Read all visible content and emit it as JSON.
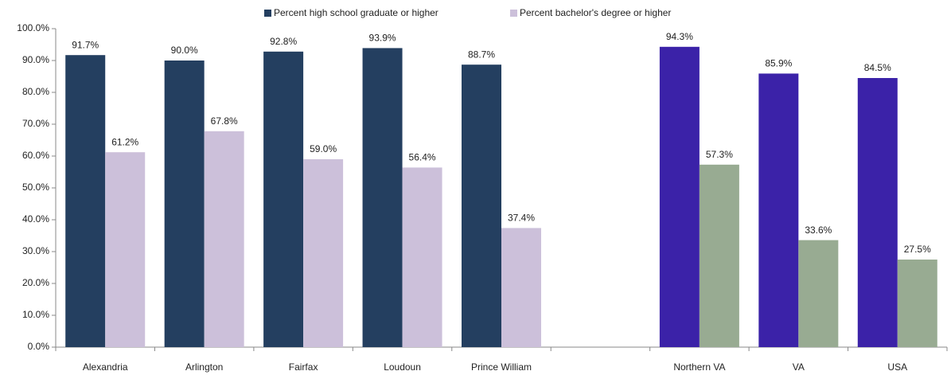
{
  "chart_data": {
    "type": "bar",
    "categories": [
      "Alexandria",
      "Arlington",
      "Fairfax",
      "Loudoun",
      "Prince William",
      null,
      "Northern VA",
      "VA",
      "USA"
    ],
    "series": [
      {
        "name": "Percent high school graduate or higher",
        "color": "#243f60",
        "point_colors": [
          "#243f60",
          "#243f60",
          "#243f60",
          "#243f60",
          "#243f60",
          null,
          "#3b22a8",
          "#3b22a8",
          "#3b22a8"
        ],
        "values": [
          91.7,
          90.0,
          92.8,
          93.9,
          88.7,
          null,
          94.3,
          85.9,
          84.5
        ],
        "value_labels": [
          "91.7%",
          "90.0%",
          "92.8%",
          "93.9%",
          "88.7%",
          null,
          "94.3%",
          "85.9%",
          "84.5%"
        ]
      },
      {
        "name": "Percent bachelor's degree or higher",
        "color": "#ccc0da",
        "point_colors": [
          "#ccc0da",
          "#ccc0da",
          "#ccc0da",
          "#ccc0da",
          "#ccc0da",
          null,
          "#98ab92",
          "#98ab92",
          "#98ab92"
        ],
        "values": [
          61.2,
          67.8,
          59.0,
          56.4,
          37.4,
          null,
          57.3,
          33.6,
          27.5
        ],
        "value_labels": [
          "61.2%",
          "67.8%",
          "59.0%",
          "56.4%",
          "37.4%",
          null,
          "57.3%",
          "33.6%",
          "27.5%"
        ]
      }
    ],
    "ylim": [
      0,
      100
    ],
    "yticks": [
      {
        "value": 0,
        "label": "0.0%"
      },
      {
        "value": 10,
        "label": "10.0%"
      },
      {
        "value": 20,
        "label": "20.0%"
      },
      {
        "value": 30,
        "label": "30.0%"
      },
      {
        "value": 40,
        "label": "40.0%"
      },
      {
        "value": 50,
        "label": "50.0%"
      },
      {
        "value": 60,
        "label": "60.0%"
      },
      {
        "value": 70,
        "label": "70.0%"
      },
      {
        "value": 80,
        "label": "80.0%"
      },
      {
        "value": 90,
        "label": "90.0%"
      },
      {
        "value": 100,
        "label": "100.0%"
      }
    ],
    "grid": false,
    "legend": "top"
  }
}
